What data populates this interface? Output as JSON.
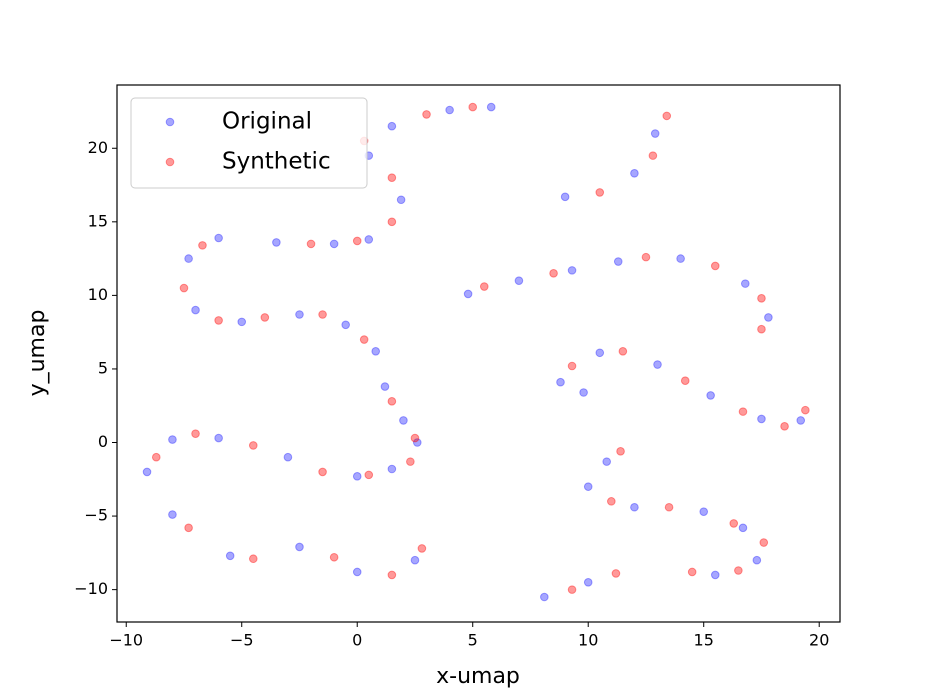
{
  "chart_data": {
    "type": "scatter",
    "xlabel": "x-umap",
    "ylabel": "y_umap",
    "xlim": [
      -10.4,
      20.9
    ],
    "ylim": [
      -12.2,
      24.3
    ],
    "xticks": [
      {
        "value": -10,
        "label": "−10"
      },
      {
        "value": -5,
        "label": "−5"
      },
      0,
      5,
      10,
      15,
      20
    ],
    "yticks": [
      {
        "value": -10,
        "label": "−10"
      },
      {
        "value": -5,
        "label": "−5"
      },
      0,
      5,
      10,
      15,
      20
    ],
    "legend": "upper left",
    "grid": false,
    "series": [
      {
        "name": "Original",
        "color": "#0000ff",
        "x": [
          -3.5,
          -1,
          0.5,
          1.9,
          0.5,
          1.5,
          4,
          5.8,
          -6,
          -7.3,
          -7,
          -5,
          -2.5,
          -0.5,
          0.8,
          1.2,
          2,
          2.6,
          1.5,
          0,
          -3,
          -6,
          -8,
          -9.1,
          -8,
          -5.5,
          -2.5,
          0,
          2.5,
          9,
          12,
          12.9,
          4.8,
          7,
          9.3,
          11.3,
          14,
          16.8,
          17.8,
          8.8,
          10.5,
          13,
          15.3,
          17.5,
          19.2,
          9.8,
          10,
          12,
          15,
          16.7,
          15.5,
          17.3,
          10.8,
          8.1,
          10
        ],
        "y": [
          13.6,
          13.5,
          13.8,
          16.5,
          19.5,
          21.5,
          22.6,
          22.8,
          13.9,
          12.5,
          9,
          8.2,
          8.7,
          8,
          6.2,
          3.8,
          1.5,
          0,
          -1.8,
          -2.3,
          -1,
          0.3,
          0.2,
          -2,
          -4.9,
          -7.7,
          -7.1,
          -8.8,
          -8,
          16.7,
          18.3,
          21,
          10.1,
          11,
          11.7,
          12.3,
          12.5,
          10.8,
          8.5,
          4.1,
          6.1,
          5.3,
          3.2,
          1.6,
          1.5,
          3.4,
          -3,
          -4.4,
          -4.7,
          -5.8,
          -9,
          -8,
          -1.3,
          -10.5,
          -9.5
        ]
      },
      {
        "name": "Synthetic",
        "color": "#ff0000",
        "x": [
          -2,
          0,
          1.5,
          1.5,
          0.3,
          3,
          5,
          -6.7,
          -7.5,
          -6,
          -4,
          -1.5,
          0.3,
          1.5,
          2.5,
          2.3,
          0.5,
          -1.5,
          -4.5,
          -7,
          -8.7,
          -7.3,
          -4.5,
          -1,
          1.5,
          2.8,
          10.5,
          12.8,
          13.4,
          5.5,
          8.5,
          12.5,
          15.5,
          17.5,
          17.5,
          9.3,
          11.5,
          14.2,
          16.7,
          18.5,
          19.4,
          11,
          13.5,
          16.3,
          14.5,
          16.5,
          17.6,
          11.4,
          9.3,
          11.2
        ],
        "y": [
          13.5,
          13.7,
          15,
          18,
          20.5,
          22.3,
          22.8,
          13.4,
          10.5,
          8.3,
          8.5,
          8.7,
          7,
          2.8,
          0.3,
          -1.3,
          -2.2,
          -2,
          -0.2,
          0.6,
          -1,
          -5.8,
          -7.9,
          -7.8,
          -9,
          -7.2,
          17,
          19.5,
          22.2,
          10.6,
          11.5,
          12.6,
          12,
          9.8,
          7.7,
          5.2,
          6.2,
          4.2,
          2.1,
          1.1,
          2.2,
          -4,
          -4.4,
          -5.5,
          -8.8,
          -8.7,
          -6.8,
          -0.6,
          -10,
          -8.9
        ]
      }
    ]
  }
}
